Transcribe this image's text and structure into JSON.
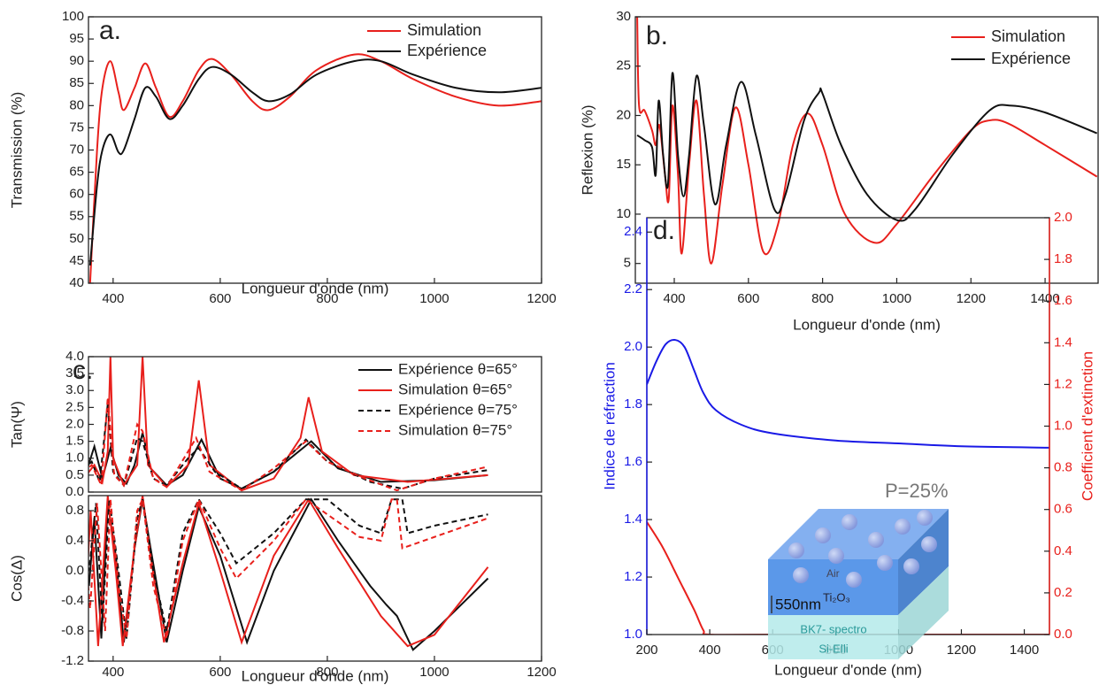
{
  "chart_data": [
    {
      "type": "line",
      "label": "a.",
      "xlabel": "Longueur d'onde (nm)",
      "ylabel": "Transmission (%)",
      "xlim": [
        354,
        1200
      ],
      "ylim": [
        40,
        100
      ],
      "xticks": [
        400,
        600,
        800,
        1000,
        1200
      ],
      "yticks": [
        40,
        45,
        50,
        55,
        60,
        65,
        70,
        75,
        80,
        85,
        90,
        95,
        100
      ],
      "legend": "upper right",
      "series": [
        {
          "name": "Simulation",
          "color": "#e8201c",
          "x": [
            357,
            370,
            380,
            395,
            410,
            420,
            440,
            460,
            480,
            505,
            530,
            560,
            585,
            620,
            660,
            690,
            730,
            780,
            850,
            900,
            960,
            1040,
            1120,
            1200
          ],
          "values": [
            40,
            70,
            84,
            90,
            83,
            79,
            84,
            89.5,
            84,
            77.5,
            81,
            88,
            90.5,
            87,
            81,
            79,
            82,
            88,
            91.5,
            90,
            86,
            82,
            80,
            81
          ]
        },
        {
          "name": "Expérience",
          "color": "#111111",
          "x": [
            357,
            370,
            380,
            395,
            410,
            420,
            440,
            460,
            480,
            505,
            530,
            560,
            585,
            620,
            660,
            690,
            730,
            780,
            850,
            900,
            960,
            1040,
            1120,
            1200
          ],
          "values": [
            44,
            62,
            70,
            73.5,
            69.5,
            70,
            77,
            84,
            82,
            77,
            80,
            86,
            88.7,
            87,
            83,
            81,
            82.5,
            87,
            90,
            90,
            87,
            84,
            83,
            84
          ]
        }
      ]
    },
    {
      "type": "line",
      "label": "b.",
      "xlabel": "Longueur d'onde (nm)",
      "ylabel": "Reflexion (%)",
      "xlim": [
        295,
        1543
      ],
      "ylim": [
        3,
        30
      ],
      "xticks": [
        400,
        600,
        800,
        1000,
        1200,
        1400
      ],
      "yticks": [
        5,
        10,
        15,
        20,
        25,
        30
      ],
      "legend": "upper right",
      "series": [
        {
          "name": "Simulation",
          "color": "#e8201c",
          "x": [
            300,
            305,
            320,
            340,
            350,
            360,
            375,
            385,
            395,
            410,
            420,
            440,
            460,
            480,
            500,
            530,
            565,
            600,
            640,
            680,
            720,
            760,
            800,
            860,
            940,
            1000,
            1100,
            1200,
            1250,
            1300,
            1400,
            1540
          ],
          "values": [
            30,
            21,
            20.5,
            18.5,
            17,
            19,
            14,
            11.5,
            21,
            14,
            6,
            15,
            21.5,
            12,
            5,
            13,
            20.8,
            15,
            6.2,
            9,
            17,
            20.2,
            17,
            10,
            7.1,
            9,
            14,
            18.5,
            19.5,
            19.2,
            17,
            13.8
          ]
        },
        {
          "name": "Expérience",
          "color": "#111111",
          "x": [
            300,
            320,
            340,
            350,
            358,
            370,
            383,
            395,
            410,
            425,
            440,
            460,
            480,
            510,
            540,
            580,
            620,
            670,
            700,
            750,
            790,
            800,
            850,
            920,
            1000,
            1050,
            1150,
            1250,
            1310,
            1400,
            1540
          ],
          "values": [
            18,
            17.5,
            16.8,
            14,
            21.5,
            16,
            13,
            24.3,
            16,
            11.8,
            16,
            24,
            19,
            11,
            17,
            23.4,
            18,
            10.5,
            12,
            19.5,
            22.3,
            22.2,
            17,
            12,
            9.4,
            10.5,
            16,
            20.5,
            21,
            20.3,
            18.2
          ]
        }
      ]
    },
    {
      "type": "line",
      "label": "c.",
      "ylabel": "Tan(Ψ)",
      "xlim": [
        354,
        1200
      ],
      "ylim": [
        0,
        4
      ],
      "yticks": [
        {
          "value": 0,
          "label": "0.0"
        },
        0.5,
        {
          "value": 1,
          "label": "1.0"
        },
        1.5,
        {
          "value": 2,
          "label": "2.0"
        },
        2.5,
        {
          "value": 3,
          "label": "3.0"
        },
        3.5,
        {
          "value": 4,
          "label": "4.0"
        }
      ],
      "legend": "upper right",
      "series": [
        {
          "name": "Expérience θ=65°",
          "color": "#111111",
          "dashed": false,
          "x": [
            320,
            350,
            365,
            380,
            395,
            410,
            425,
            440,
            455,
            470,
            500,
            530,
            565,
            600,
            640,
            700,
            770,
            820,
            900,
            1000,
            1100
          ],
          "values": [
            0.3,
            0.6,
            1.35,
            0.4,
            1.3,
            0.5,
            0.25,
            0.8,
            1.75,
            0.7,
            0.2,
            0.5,
            1.55,
            0.4,
            0.1,
            0.6,
            1.5,
            0.7,
            0.3,
            0.35,
            0.5
          ]
        },
        {
          "name": "Simulation θ=65°",
          "color": "#e8201c",
          "dashed": false,
          "x": [
            320,
            350,
            365,
            380,
            390,
            395,
            400,
            420,
            445,
            455,
            465,
            500,
            540,
            560,
            580,
            640,
            700,
            750,
            765,
            790,
            850,
            950,
            1100
          ],
          "values": [
            0.1,
            0.5,
            0.8,
            0.3,
            1.2,
            4,
            1,
            0.2,
            0.8,
            4,
            0.8,
            0.15,
            0.8,
            3.3,
            0.8,
            0.05,
            0.4,
            1.6,
            2.8,
            1.2,
            0.5,
            0.3,
            0.5
          ]
        },
        {
          "name": "Expérience θ=75°",
          "color": "#111111",
          "dashed": true,
          "x": [
            320,
            360,
            375,
            390,
            400,
            420,
            445,
            455,
            475,
            500,
            540,
            560,
            590,
            640,
            700,
            760,
            800,
            880,
            940,
            1000,
            1100
          ],
          "values": [
            0.3,
            0.9,
            0.3,
            2.6,
            0.6,
            0.2,
            1.6,
            1.5,
            0.4,
            0.2,
            1,
            1.3,
            0.6,
            0.1,
            0.6,
            1.55,
            0.9,
            0.3,
            0.1,
            0.4,
            0.65
          ]
        },
        {
          "name": "Simulation θ=75°",
          "color": "#e8201c",
          "dashed": true,
          "x": [
            320,
            360,
            378,
            390,
            402,
            420,
            445,
            455,
            475,
            500,
            540,
            555,
            580,
            640,
            700,
            760,
            800,
            870,
            930,
            1000,
            1100
          ],
          "values": [
            0.2,
            0.8,
            0.2,
            2.8,
            0.5,
            0.2,
            2,
            1.8,
            0.4,
            0.15,
            1.2,
            1.6,
            0.6,
            0.05,
            0.7,
            1.5,
            0.9,
            0.4,
            0.05,
            0.4,
            0.75
          ]
        }
      ]
    },
    {
      "type": "line",
      "xlabel": "Longueur d'onde (nm)",
      "ylabel": "Cos(Δ)",
      "xlim": [
        354,
        1200
      ],
      "ylim": [
        -1.2,
        1.0
      ],
      "xticks": [
        400,
        600,
        800,
        1000,
        1200
      ],
      "yticks": [
        -1.2,
        -0.8,
        -0.4,
        {
          "value": 0,
          "label": "0.0"
        },
        0.4,
        0.8
      ],
      "series": [
        {
          "color": "#111111",
          "dashed": false,
          "x": [
            320,
            330,
            345,
            355,
            365,
            378,
            390,
            405,
            420,
            440,
            455,
            470,
            500,
            530,
            560,
            600,
            650,
            700,
            770,
            820,
            880,
            910,
            930,
            960,
            1000,
            1100
          ],
          "values": [
            0.3,
            0.9,
            0.5,
            -0.2,
            0.7,
            -0.9,
            0.9,
            0.2,
            -0.95,
            0.3,
            0.95,
            0.3,
            -0.95,
            0,
            0.85,
            0.2,
            -0.95,
            0,
            0.95,
            0.4,
            -0.2,
            -0.45,
            -0.6,
            -1.05,
            -0.8,
            -0.1
          ]
        },
        {
          "color": "#e8201c",
          "dashed": false,
          "x": [
            320,
            335,
            345,
            358,
            372,
            390,
            405,
            418,
            440,
            455,
            470,
            495,
            530,
            560,
            600,
            640,
            700,
            765,
            820,
            900,
            950,
            1000,
            1100
          ],
          "values": [
            0.6,
            0.7,
            -0.9,
            0.8,
            -1,
            1,
            0,
            -1,
            0.3,
            1,
            0.2,
            -0.95,
            0.1,
            0.9,
            0,
            -0.95,
            0.2,
            0.95,
            0.3,
            -0.6,
            -1,
            -0.85,
            0.05
          ]
        },
        {
          "color": "#111111",
          "dashed": true,
          "x": [
            320,
            340,
            355,
            368,
            380,
            393,
            410,
            425,
            445,
            455,
            475,
            500,
            530,
            560,
            600,
            630,
            700,
            760,
            800,
            860,
            900,
            920,
            940,
            950,
            1000,
            1100
          ],
          "values": [
            0.7,
            1,
            0,
            0.9,
            -0.7,
            0.95,
            0,
            -0.9,
            0.7,
            0.95,
            0,
            -0.8,
            0.5,
            0.95,
            0.5,
            0.1,
            0.5,
            0.95,
            0.95,
            0.6,
            0.5,
            0.95,
            0.95,
            0.5,
            0.6,
            0.75
          ]
        },
        {
          "color": "#e8201c",
          "dashed": true,
          "x": [
            320,
            340,
            357,
            370,
            385,
            395,
            410,
            425,
            445,
            455,
            475,
            500,
            530,
            560,
            600,
            630,
            700,
            760,
            800,
            860,
            900,
            920,
            930,
            940,
            1000,
            1100
          ],
          "values": [
            0.9,
            0.95,
            -0.5,
            0.9,
            -0.8,
            0.95,
            -0.2,
            -0.9,
            0.8,
            0.95,
            -0.2,
            -0.9,
            0.4,
            0.95,
            0.3,
            -0.1,
            0.4,
            0.95,
            0.75,
            0.45,
            0.4,
            0.95,
            0.95,
            0.3,
            0.45,
            0.7
          ]
        }
      ]
    },
    {
      "type": "line",
      "label": "d.",
      "xlabel": "Longueur d'onde (nm)",
      "ylabel": "Indice de réfraction",
      "y2label": "Coefficient d'extinction",
      "xlim": [
        200,
        1480
      ],
      "ylim": [
        1.0,
        2.45
      ],
      "y2lim": [
        0,
        2
      ],
      "xticks": [
        200,
        400,
        600,
        800,
        1000,
        1200,
        1400
      ],
      "yticks": [
        {
          "value": 1,
          "label": "1.0"
        },
        1.2,
        1.4,
        1.6,
        1.8,
        {
          "value": 2,
          "label": "2.0"
        },
        2.2,
        2.4
      ],
      "y2ticks": [
        {
          "value": 0,
          "label": "0.0"
        },
        0.2,
        0.4,
        0.6,
        0.8,
        {
          "value": 1,
          "label": "1.0"
        },
        1.2,
        1.4,
        1.6,
        1.8,
        {
          "value": 2,
          "label": "2.0"
        }
      ],
      "annotations": [
        "P=25%"
      ],
      "inset": {
        "top": "Air",
        "layer": "Ti₂O₃",
        "thickness": "550nm",
        "substrate": [
          "BK7- spectro",
          "Si-Elli"
        ]
      },
      "series": [
        {
          "color": "#1a1ae6",
          "x": [
            200,
            230,
            260,
            290,
            320,
            350,
            380,
            420,
            500,
            600,
            800,
            1000,
            1200,
            1480
          ],
          "values": [
            1.87,
            1.95,
            2.01,
            2.025,
            2,
            1.92,
            1.84,
            1.78,
            1.73,
            1.7,
            1.675,
            1.665,
            1.655,
            1.65
          ]
        },
        {
          "color": "#e8201c",
          "axis": "y2",
          "x": [
            200,
            250,
            300,
            350,
            380,
            400,
            600,
            1480
          ],
          "values": [
            0.54,
            0.42,
            0.27,
            0.12,
            0.02,
            0,
            0,
            0
          ]
        }
      ]
    }
  ]
}
